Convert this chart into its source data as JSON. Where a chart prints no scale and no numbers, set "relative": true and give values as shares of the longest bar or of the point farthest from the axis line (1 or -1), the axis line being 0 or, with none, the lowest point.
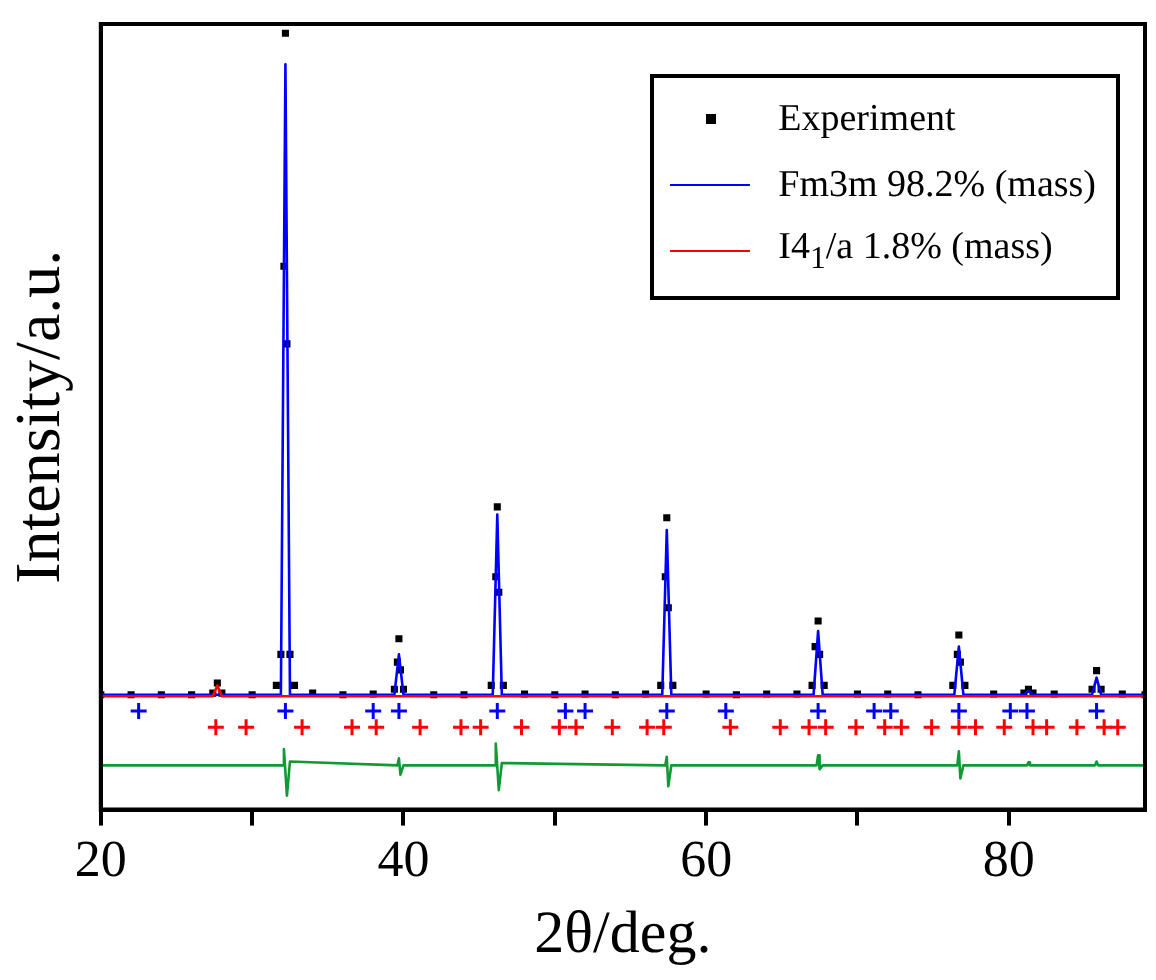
{
  "chart_data": {
    "type": "line",
    "relative": true,
    "xlabel": "2θ/deg.",
    "ylabel": "Intensity/a.u.",
    "xlim": [
      20,
      89
    ],
    "xticks": [
      20,
      {
        "value": 30,
        "label": null
      },
      40,
      {
        "value": 50,
        "label": null
      },
      60,
      {
        "value": 70,
        "label": null
      },
      80
    ],
    "legend": "top right",
    "series": [
      {
        "name": "Experiment",
        "type": "scatter",
        "marker": "square",
        "color": "#000000",
        "x": [
          20,
          22,
          24,
          26,
          27.4,
          27.7,
          28.0,
          30,
          31.6,
          31.9,
          32.1,
          32.2,
          32.3,
          32.5,
          32.8,
          34,
          36,
          38,
          39.4,
          39.6,
          39.7,
          39.8,
          40.0,
          42,
          44,
          45.8,
          46.1,
          46.2,
          46.3,
          46.6,
          48,
          50,
          52,
          54,
          56,
          57.0,
          57.3,
          57.4,
          57.5,
          57.8,
          60,
          62,
          64,
          66,
          67.0,
          67.2,
          67.4,
          67.5,
          67.8,
          70,
          72,
          74,
          76.3,
          76.6,
          76.7,
          76.8,
          77.1,
          79,
          81.0,
          81.3,
          81.6,
          83,
          85.5,
          85.8,
          86.1,
          87.5,
          89
        ],
        "values": [
          0.148,
          0.148,
          0.148,
          0.148,
          0.15,
          0.163,
          0.15,
          0.148,
          0.16,
          0.2,
          0.7,
          1.0,
          0.6,
          0.2,
          0.16,
          0.15,
          0.148,
          0.149,
          0.155,
          0.19,
          0.22,
          0.18,
          0.155,
          0.148,
          0.148,
          0.16,
          0.3,
          0.39,
          0.28,
          0.16,
          0.149,
          0.148,
          0.149,
          0.148,
          0.149,
          0.16,
          0.3,
          0.376,
          0.26,
          0.16,
          0.149,
          0.148,
          0.149,
          0.149,
          0.16,
          0.21,
          0.243,
          0.2,
          0.16,
          0.149,
          0.149,
          0.148,
          0.16,
          0.2,
          0.225,
          0.19,
          0.16,
          0.149,
          0.15,
          0.155,
          0.15,
          0.149,
          0.155,
          0.179,
          0.155,
          0.149,
          0.148
        ]
      },
      {
        "name": "Fm3m  98.2% (mass)",
        "type": "line",
        "marker": "none",
        "color": "#0000ff",
        "x": [
          20,
          31.9,
          32.2,
          32.5,
          39.4,
          39.7,
          40.0,
          45.9,
          46.2,
          46.5,
          57.1,
          57.4,
          57.7,
          67.1,
          67.4,
          67.7,
          76.4,
          76.7,
          77.0,
          81.0,
          81.3,
          81.6,
          85.5,
          85.8,
          86.1,
          89
        ],
        "values": [
          0.148,
          0.148,
          0.96,
          0.148,
          0.148,
          0.2,
          0.148,
          0.148,
          0.38,
          0.148,
          0.148,
          0.36,
          0.148,
          0.148,
          0.23,
          0.148,
          0.148,
          0.21,
          0.148,
          0.148,
          0.153,
          0.148,
          0.148,
          0.17,
          0.148,
          0.148
        ]
      },
      {
        "name": "I4$_{1}$/a  1.8% (mass)",
        "type": "line",
        "marker": "none",
        "color": "#ff0000",
        "x": [
          20,
          27.4,
          27.7,
          28.0,
          89
        ],
        "values": [
          0.146,
          0.146,
          0.16,
          0.146,
          0.146
        ]
      },
      {
        "type": "line",
        "marker": "none",
        "color": "#119933",
        "x": [
          20,
          32.0,
          32.1,
          32.3,
          32.5,
          39.6,
          39.7,
          39.8,
          40.0,
          46.0,
          46.1,
          46.3,
          46.5,
          57.3,
          57.4,
          57.5,
          57.7,
          67.3,
          67.4,
          67.5,
          67.7,
          76.6,
          76.7,
          76.8,
          77.0,
          81.2,
          81.3,
          81.4,
          85.7,
          85.8,
          85.9,
          89
        ],
        "values": [
          0.057,
          0.057,
          0.078,
          0.018,
          0.062,
          0.057,
          0.066,
          0.045,
          0.057,
          0.057,
          0.085,
          0.025,
          0.06,
          0.057,
          0.068,
          0.03,
          0.057,
          0.057,
          0.07,
          0.052,
          0.057,
          0.057,
          0.075,
          0.04,
          0.057,
          0.057,
          0.061,
          0.057,
          0.057,
          0.062,
          0.057,
          0.057
        ]
      },
      {
        "type": "scatter",
        "marker": "cross",
        "color": "#0000ff",
        "x": [
          22.5,
          32.2,
          38.0,
          39.7,
          46.2,
          50.7,
          52.0,
          57.4,
          61.3,
          67.4,
          71.1,
          72.2,
          76.7,
          80.1,
          81.2,
          85.8
        ],
        "values": [
          0.127,
          0.127,
          0.127,
          0.127,
          0.127,
          0.127,
          0.127,
          0.127,
          0.127,
          0.127,
          0.127,
          0.127,
          0.127,
          0.127,
          0.127,
          0.127
        ]
      },
      {
        "type": "scatter",
        "marker": "cross",
        "color": "#ff0000",
        "x": [
          27.6,
          29.6,
          33.3,
          36.6,
          38.2,
          41.1,
          43.8,
          45.1,
          47.8,
          50.3,
          51.4,
          53.8,
          56.1,
          57.2,
          61.6,
          64.9,
          66.8,
          67.9,
          69.9,
          71.8,
          72.9,
          74.9,
          76.7,
          77.8,
          79.7,
          81.6,
          82.5,
          84.5,
          86.3,
          87.2
        ],
        "values": [
          0.106,
          0.106,
          0.106,
          0.106,
          0.106,
          0.106,
          0.106,
          0.106,
          0.106,
          0.106,
          0.106,
          0.106,
          0.106,
          0.106,
          0.106,
          0.106,
          0.106,
          0.106,
          0.106,
          0.106,
          0.106,
          0.106,
          0.106,
          0.106,
          0.106,
          0.106,
          0.106,
          0.106,
          0.106,
          0.106
        ]
      }
    ]
  }
}
